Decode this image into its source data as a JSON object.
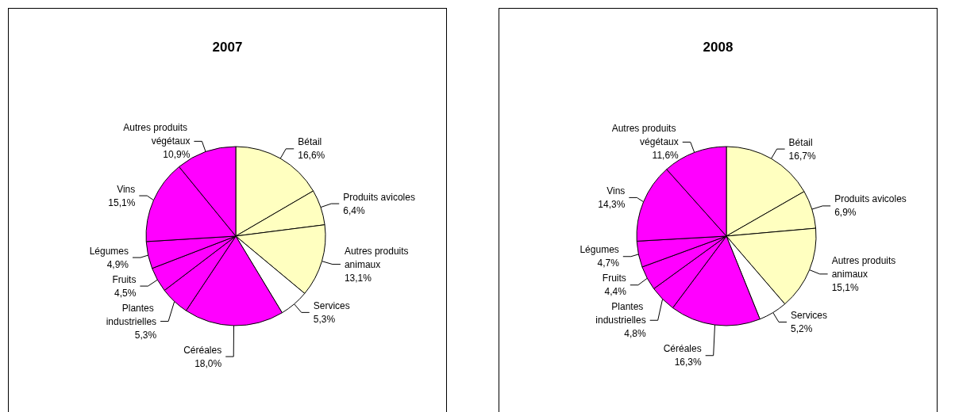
{
  "chart_data": [
    {
      "type": "pie",
      "title": "2007",
      "categories": [
        "Bétail",
        "Produits avicoles",
        "Autres produits animaux",
        "Services",
        "Céréales",
        "Plantes industrielles",
        "Fruits",
        "Légumes",
        "Vins",
        "Autres produits végétaux"
      ],
      "values": [
        16.6,
        6.4,
        13.1,
        5.3,
        18.0,
        5.3,
        4.5,
        4.9,
        15.1,
        10.9
      ],
      "value_labels": [
        "16,6%",
        "6,4%",
        "13,1%",
        "5,3%",
        "18,0%",
        "5,3%",
        "4,5%",
        "4,9%",
        "15,1%",
        "10,9%"
      ],
      "colors": [
        "#ffffc0",
        "#ffffc0",
        "#ffffc0",
        "#ffffff",
        "#ff00ff",
        "#ff00ff",
        "#ff00ff",
        "#ff00ff",
        "#ff00ff",
        "#ff00ff"
      ]
    },
    {
      "type": "pie",
      "title": "2008",
      "categories": [
        "Bétail",
        "Produits avicoles",
        "Autres produits animaux",
        "Services",
        "Céréales",
        "Plantes industrielles",
        "Fruits",
        "Légumes",
        "Vins",
        "Autres produits végétaux"
      ],
      "values": [
        16.7,
        6.9,
        15.1,
        5.2,
        16.3,
        4.8,
        4.4,
        4.7,
        14.3,
        11.6
      ],
      "value_labels": [
        "16,7%",
        "6,9%",
        "15,1%",
        "5,2%",
        "16,3%",
        "4,8%",
        "4,4%",
        "4,7%",
        "14,3%",
        "11,6%"
      ],
      "colors": [
        "#ffffc0",
        "#ffffc0",
        "#ffffc0",
        "#ffffff",
        "#ff00ff",
        "#ff00ff",
        "#ff00ff",
        "#ff00ff",
        "#ff00ff",
        "#ff00ff"
      ]
    }
  ]
}
